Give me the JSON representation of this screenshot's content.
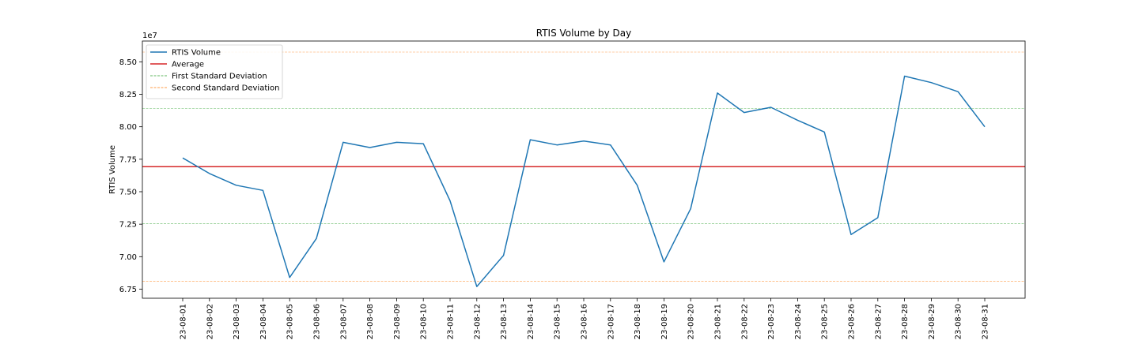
{
  "chart_data": {
    "type": "line",
    "title": "RTIS Volume by Day",
    "xlabel": "",
    "ylabel": "RTIS Volume",
    "y_offset_label": "1e7",
    "ylim": [
      6.68,
      8.66
    ],
    "y_ticks": [
      "6.75",
      "7.00",
      "7.25",
      "7.50",
      "7.75",
      "8.00",
      "8.25",
      "8.50"
    ],
    "grid": false,
    "legend_position": "top-left",
    "categories": [
      "23-08-01",
      "23-08-02",
      "23-08-03",
      "23-08-04",
      "23-08-05",
      "23-08-06",
      "23-08-07",
      "23-08-08",
      "23-08-09",
      "23-08-10",
      "23-08-11",
      "23-08-12",
      "23-08-13",
      "23-08-14",
      "23-08-15",
      "23-08-16",
      "23-08-17",
      "23-08-18",
      "23-08-19",
      "23-08-20",
      "23-08-21",
      "23-08-22",
      "23-08-23",
      "23-08-24",
      "23-08-25",
      "23-08-26",
      "23-08-27",
      "23-08-28",
      "23-08-29",
      "23-08-30",
      "23-08-31"
    ],
    "series": [
      {
        "name": "RTIS Volume",
        "color": "#1f77b4",
        "style": "solid",
        "values": [
          7.76,
          7.64,
          7.55,
          7.51,
          6.84,
          7.14,
          7.88,
          7.84,
          7.88,
          7.87,
          7.43,
          6.77,
          7.01,
          7.9,
          7.86,
          7.89,
          7.86,
          7.55,
          6.96,
          7.37,
          8.26,
          8.11,
          8.15,
          8.05,
          7.96,
          7.17,
          7.3,
          8.39,
          8.34,
          8.27,
          8.0
        ]
      }
    ],
    "reference_lines": [
      {
        "name": "Average",
        "value": 7.693,
        "color": "#d62728",
        "style": "solid"
      },
      {
        "name": "First Standard Deviation",
        "value": 8.14,
        "color": "#2ca02c",
        "style": "dashed"
      },
      {
        "name": "First Standard Deviation",
        "value": 7.255,
        "color": "#2ca02c",
        "style": "dashed"
      },
      {
        "name": "Second Standard Deviation",
        "value": 8.575,
        "color": "#ff7f0e",
        "style": "dashed"
      },
      {
        "name": "Second Standard Deviation",
        "value": 6.81,
        "color": "#ff7f0e",
        "style": "dashed"
      }
    ],
    "legend": [
      {
        "label": "RTIS Volume",
        "color": "#1f77b4",
        "style": "solid"
      },
      {
        "label": "Average",
        "color": "#d62728",
        "style": "solid"
      },
      {
        "label": "First Standard Deviation",
        "color": "#2ca02c",
        "style": "dashed"
      },
      {
        "label": "Second Standard Deviation",
        "color": "#ff7f0e",
        "style": "dashed"
      }
    ]
  }
}
